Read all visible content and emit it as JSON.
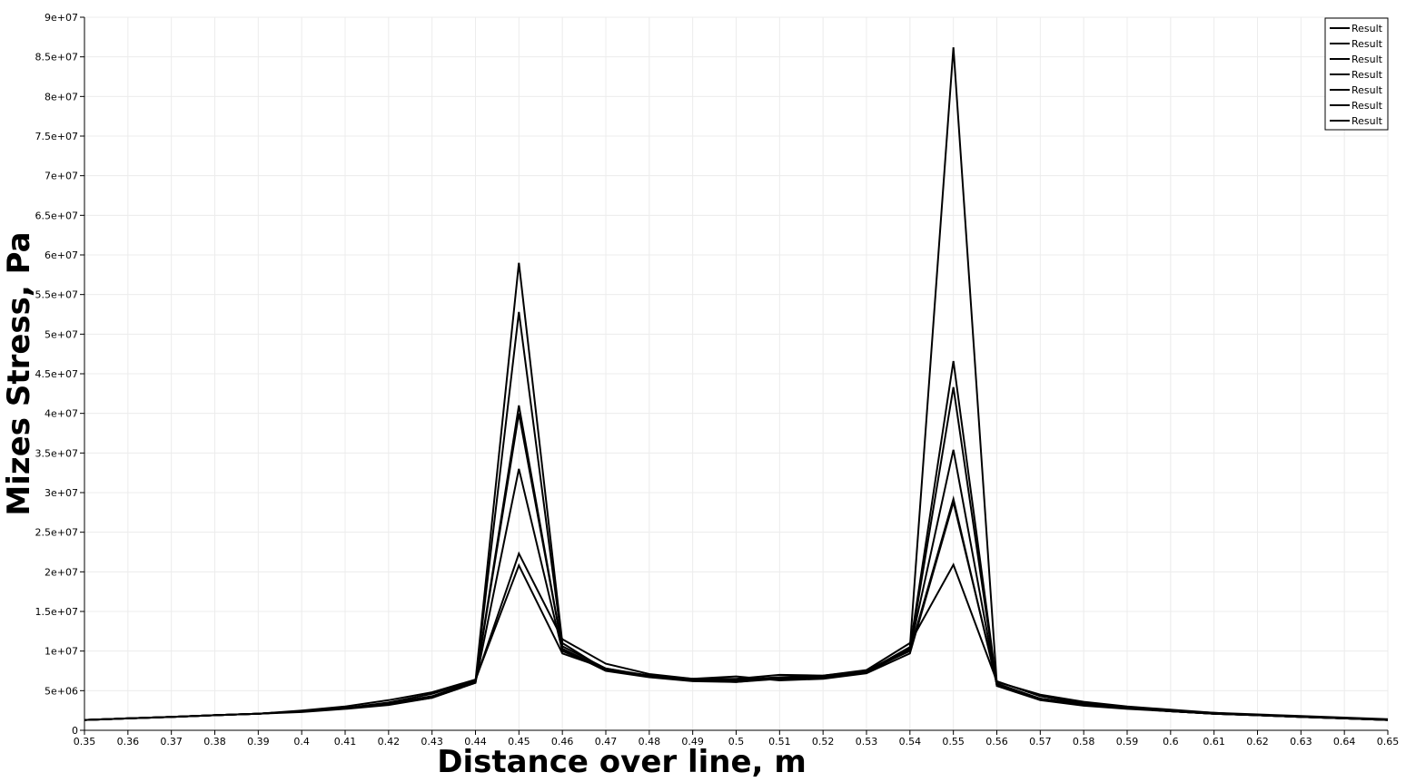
{
  "chart_data": {
    "type": "line",
    "title": "",
    "xlabel": "Distance over line, m",
    "ylabel": "Mizes Stress, Pa",
    "xlim": [
      0.35,
      0.65
    ],
    "ylim": [
      0,
      90000000
    ],
    "grid": true,
    "legend_position": "top-right",
    "x_ticks": [
      "0.35",
      "0.36",
      "0.37",
      "0.38",
      "0.39",
      "0.4",
      "0.41",
      "0.42",
      "0.43",
      "0.44",
      "0.45",
      "0.46",
      "0.47",
      "0.48",
      "0.49",
      "0.5",
      "0.51",
      "0.52",
      "0.53",
      "0.54",
      "0.55",
      "0.56",
      "0.57",
      "0.58",
      "0.59",
      "0.6",
      "0.61",
      "0.62",
      "0.63",
      "0.64",
      "0.65"
    ],
    "y_ticks": [
      "0",
      "5e+06",
      "1e+07",
      "1.5e+07",
      "2e+07",
      "2.5e+07",
      "3e+07",
      "3.5e+07",
      "4e+07",
      "4.5e+07",
      "5e+07",
      "5.5e+07",
      "6e+07",
      "6.5e+07",
      "7e+07",
      "7.5e+07",
      "8e+07",
      "8.5e+07",
      "9e+07"
    ],
    "x": [
      0.35,
      0.36,
      0.37,
      0.38,
      0.39,
      0.4,
      0.41,
      0.42,
      0.43,
      0.44,
      0.45,
      0.46,
      0.47,
      0.48,
      0.49,
      0.5,
      0.51,
      0.52,
      0.53,
      0.54,
      0.55,
      0.56,
      0.57,
      0.58,
      0.59,
      0.6,
      0.61,
      0.62,
      0.63,
      0.64,
      0.65
    ],
    "series": [
      {
        "name": "Result",
        "color": "#000000",
        "values": [
          1300000,
          1500000,
          1700000,
          1900000,
          2100000,
          2400000,
          2800000,
          3400000,
          4300000,
          6200000,
          59000000,
          11000000,
          7600000,
          6900000,
          6300000,
          6100000,
          6600000,
          6700000,
          7400000,
          10500000,
          86200000,
          5900000,
          4000000,
          3300000,
          2800000,
          2400000,
          2100000,
          1900000,
          1700000,
          1500000,
          1300000
        ]
      },
      {
        "name": "Result",
        "color": "#000000",
        "values": [
          1300000,
          1500000,
          1700000,
          1900000,
          2100000,
          2300000,
          2700000,
          3200000,
          4100000,
          6000000,
          52800000,
          10600000,
          7800000,
          6800000,
          6300000,
          6300000,
          6600000,
          6800000,
          7500000,
          10300000,
          46600000,
          5700000,
          3900000,
          3200000,
          2800000,
          2400000,
          2100000,
          1900000,
          1700000,
          1500000,
          1300000
        ]
      },
      {
        "name": "Result",
        "color": "#000000",
        "values": [
          1300000,
          1500000,
          1700000,
          1900000,
          2100000,
          2400000,
          2800000,
          3300000,
          4200000,
          6100000,
          41000000,
          10200000,
          7500000,
          6700000,
          6200000,
          6100000,
          6500000,
          6600000,
          7300000,
          10100000,
          43300000,
          5600000,
          3800000,
          3100000,
          2700000,
          2400000,
          2100000,
          1900000,
          1700000,
          1500000,
          1300000
        ]
      },
      {
        "name": "Result",
        "color": "#000000",
        "values": [
          1300000,
          1500000,
          1700000,
          1900000,
          2100000,
          2400000,
          2800000,
          3300000,
          4200000,
          6100000,
          40000000,
          10300000,
          7600000,
          6800000,
          6300000,
          6200000,
          6500000,
          6700000,
          7400000,
          10200000,
          35400000,
          5700000,
          3900000,
          3200000,
          2800000,
          2400000,
          2100000,
          1900000,
          1700000,
          1500000,
          1300000
        ]
      },
      {
        "name": "Result",
        "color": "#000000",
        "values": [
          1300000,
          1500000,
          1700000,
          1900000,
          2100000,
          2400000,
          2800000,
          3300000,
          4100000,
          6000000,
          33000000,
          10000000,
          7700000,
          6900000,
          6400000,
          6400000,
          6700000,
          6900000,
          7500000,
          10000000,
          29200000,
          5800000,
          4000000,
          3300000,
          2800000,
          2400000,
          2100000,
          1900000,
          1700000,
          1500000,
          1300000
        ]
      },
      {
        "name": "Result",
        "color": "#000000",
        "values": [
          1300000,
          1500000,
          1700000,
          1900000,
          2100000,
          2400000,
          2800000,
          3500000,
          4600000,
          6300000,
          22300000,
          11500000,
          8400000,
          7100000,
          6500000,
          6800000,
          6300000,
          6500000,
          7200000,
          9700000,
          28800000,
          6100000,
          4500000,
          3600000,
          3000000,
          2600000,
          2200000,
          1900000,
          1700000,
          1500000,
          1300000
        ]
      },
      {
        "name": "Result",
        "color": "#000000",
        "values": [
          1300000,
          1500000,
          1700000,
          1900000,
          2100000,
          2500000,
          3000000,
          3800000,
          4800000,
          6400000,
          20800000,
          9700000,
          7800000,
          6900000,
          6500000,
          6500000,
          7000000,
          6900000,
          7600000,
          11000000,
          20900000,
          6200000,
          4300000,
          3400000,
          2900000,
          2500000,
          2200000,
          2000000,
          1800000,
          1600000,
          1400000
        ]
      }
    ]
  }
}
